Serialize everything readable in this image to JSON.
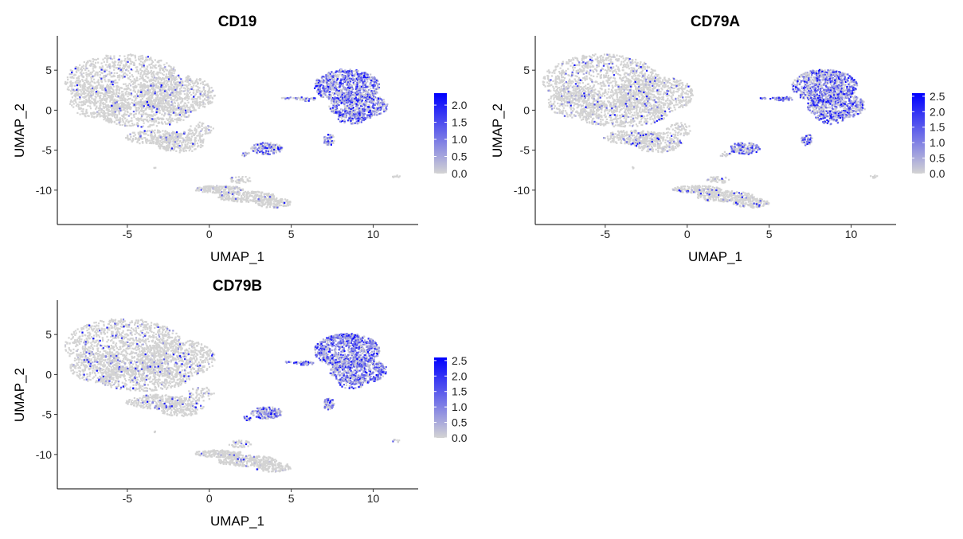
{
  "chart_data": [
    {
      "type": "scatter",
      "title": "CD19",
      "xlabel": "UMAP_1",
      "ylabel": "UMAP_2",
      "xlim": [
        -9,
        13
      ],
      "ylim": [
        -14,
        9
      ],
      "x_ticks": [
        -5,
        0,
        5,
        10
      ],
      "y_ticks": [
        5,
        0,
        -5,
        -10
      ],
      "legend": {
        "position": "right",
        "min": 0.0,
        "max": 2.35,
        "ticks": [
          0.0,
          0.5,
          1.0,
          1.5,
          2.0
        ],
        "tick_labels": [
          "0.0",
          "0.5",
          "1.0",
          "1.5",
          "2.0"
        ]
      },
      "colors": {
        "low": "#d3d3d3",
        "high": "#0000ff"
      },
      "grid": false,
      "cluster_expression": {
        "left_large": 0.06,
        "bottom_strip": 0.05,
        "small_middle": 0.45,
        "bcell_cluster": 0.85,
        "bcell_tail": 0.7,
        "bcell_arm": 0.5,
        "outlier": 0.0
      }
    },
    {
      "type": "scatter",
      "title": "CD79A",
      "xlabel": "UMAP_1",
      "ylabel": "UMAP_2",
      "xlim": [
        -9,
        13
      ],
      "ylim": [
        -14,
        9
      ],
      "x_ticks": [
        -5,
        0,
        5,
        10
      ],
      "y_ticks": [
        5,
        0,
        -5,
        -10
      ],
      "legend": {
        "position": "right",
        "min": 0.0,
        "max": 2.6,
        "ticks": [
          0.0,
          0.5,
          1.0,
          1.5,
          2.0,
          2.5
        ],
        "tick_labels": [
          "0.0",
          "0.5",
          "1.0",
          "1.5",
          "2.0",
          "2.5"
        ]
      },
      "colors": {
        "low": "#d3d3d3",
        "high": "#0000ff"
      },
      "grid": false,
      "cluster_expression": {
        "left_large": 0.09,
        "bottom_strip": 0.09,
        "small_middle": 0.7,
        "bcell_cluster": 0.8,
        "bcell_tail": 0.8,
        "bcell_arm": 0.9,
        "outlier": 0.0
      }
    },
    {
      "type": "scatter",
      "title": "CD79B",
      "xlabel": "UMAP_1",
      "ylabel": "UMAP_2",
      "xlim": [
        -9,
        13
      ],
      "ylim": [
        -14,
        9
      ],
      "x_ticks": [
        -5,
        0,
        5,
        10
      ],
      "y_ticks": [
        5,
        0,
        -5,
        -10
      ],
      "legend": {
        "position": "right",
        "min": 0.0,
        "max": 2.6,
        "ticks": [
          0.0,
          0.5,
          1.0,
          1.5,
          2.0,
          2.5
        ],
        "tick_labels": [
          "0.0",
          "0.5",
          "1.0",
          "1.5",
          "2.0",
          "2.5"
        ]
      },
      "colors": {
        "low": "#d3d3d3",
        "high": "#0000ff"
      },
      "grid": false,
      "cluster_expression": {
        "left_large": 0.08,
        "bottom_strip": 0.07,
        "small_middle": 0.75,
        "bcell_cluster": 0.95,
        "bcell_tail": 0.75,
        "bcell_arm": 0.95,
        "outlier": 0.2
      }
    }
  ]
}
